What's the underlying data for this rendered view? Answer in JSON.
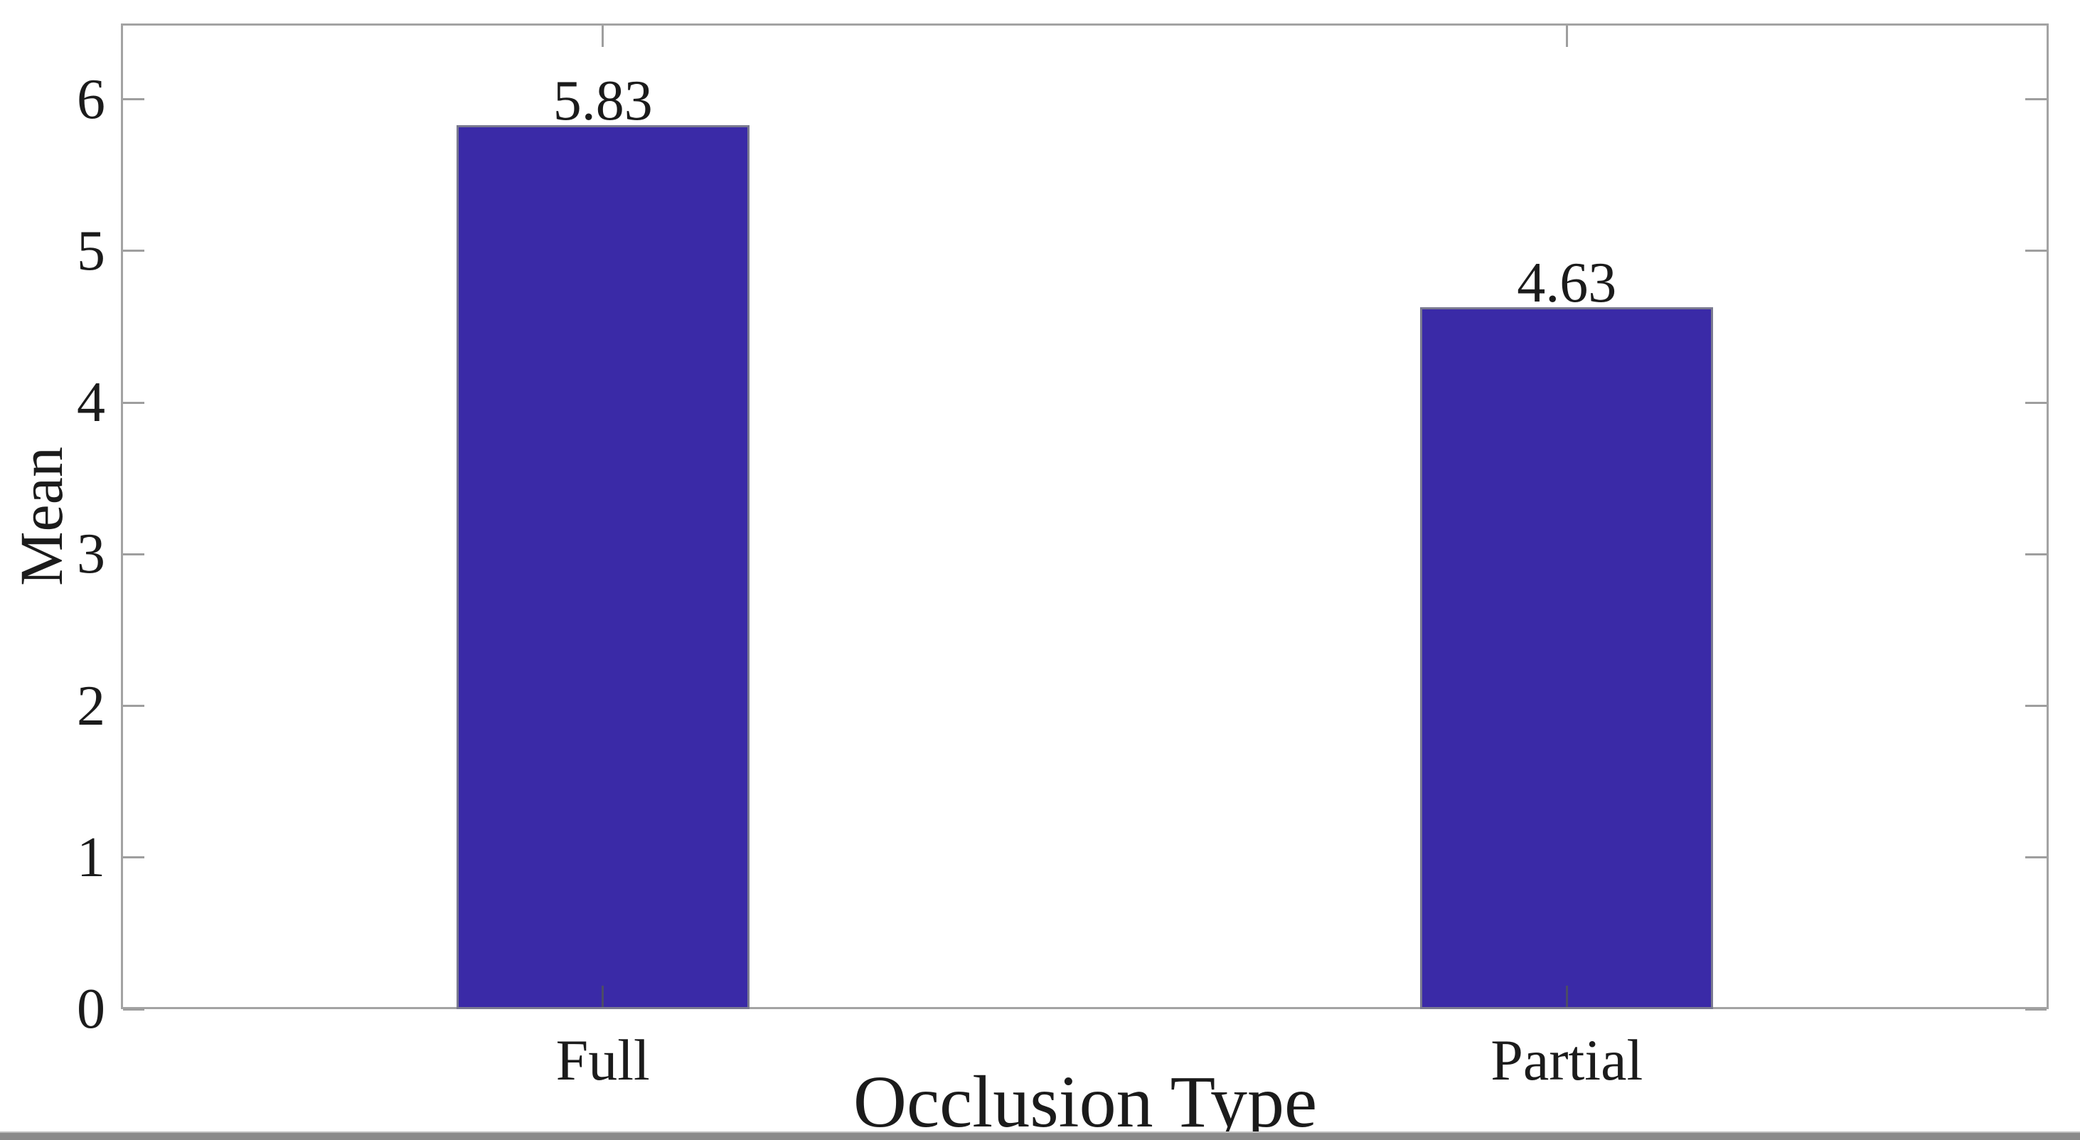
{
  "chart_data": {
    "type": "bar",
    "title": "",
    "categories": [
      "Full",
      "Partial"
    ],
    "values": [
      5.83,
      4.63
    ],
    "value_labels": [
      "5.83",
      "4.63"
    ],
    "xlabel": "Occlusion Type",
    "ylabel": "Mean",
    "ylim": [
      0,
      6.5
    ],
    "yticks": [
      0,
      1,
      2,
      3,
      4,
      5,
      6
    ],
    "ytick_labels": [
      "0",
      "1",
      "2",
      "3",
      "4",
      "5",
      "6"
    ],
    "grid": false,
    "box": true,
    "tick_direction": "in",
    "colors": {
      "bar_fill": "#3a2aa7",
      "bar_edge": "#7a7a90",
      "axis": "#a3a3a3",
      "tick": "#9e9e9e",
      "text": "#1b1b1b",
      "background": "#ffffff",
      "bottom_border": "#8a8a8a"
    }
  }
}
